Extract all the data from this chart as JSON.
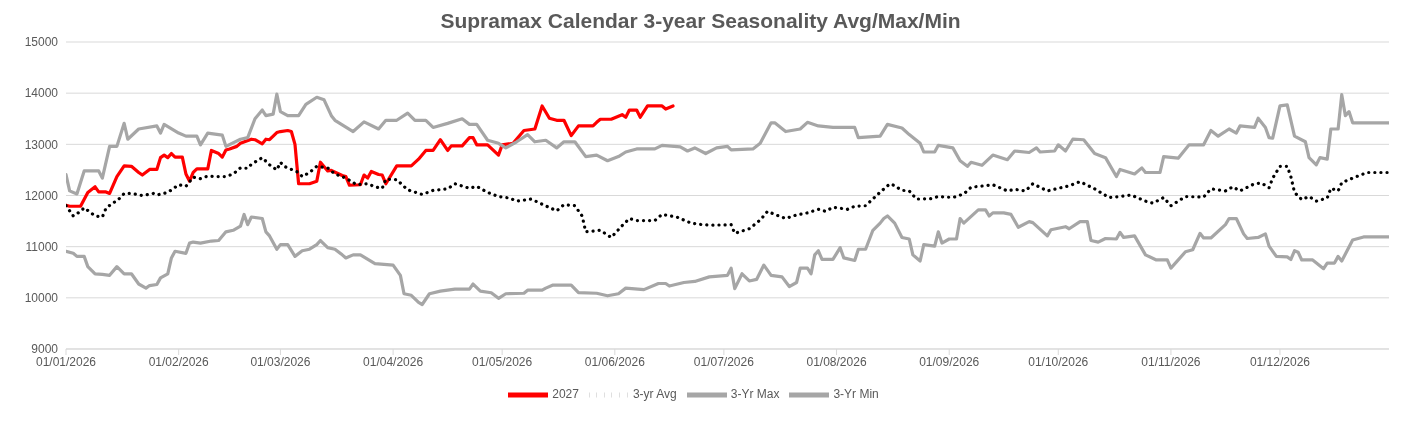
{
  "chart_data": {
    "type": "line",
    "title": "Supramax Calendar 3-year Seasonality Avg/Max/Min",
    "xlim": [
      "2026-01-01",
      "2026-12-31"
    ],
    "xticks": [
      {
        "value": "2026-01-01",
        "label": "01/01/2026"
      },
      {
        "value": "2026-02-01",
        "label": "01/02/2026"
      },
      {
        "value": "2026-03-01",
        "label": "01/03/2026"
      },
      {
        "value": "2026-04-01",
        "label": "01/04/2026"
      },
      {
        "value": "2026-05-01",
        "label": "01/05/2026"
      },
      {
        "value": "2026-06-01",
        "label": "01/06/2026"
      },
      {
        "value": "2026-07-01",
        "label": "01/07/2026"
      },
      {
        "value": "2026-08-01",
        "label": "01/08/2026"
      },
      {
        "value": "2026-09-01",
        "label": "01/09/2026"
      },
      {
        "value": "2026-10-01",
        "label": "01/10/2026"
      },
      {
        "value": "2026-11-01",
        "label": "01/11/2026"
      },
      {
        "value": "2026-12-01",
        "label": "01/12/2026"
      }
    ],
    "ylim": [
      9000,
      15000
    ],
    "yticks": [
      9000,
      10000,
      11000,
      12000,
      13000,
      14000,
      15000
    ],
    "grid": "y",
    "legend": "bottom",
    "marker": "none",
    "series": [
      {
        "name": "2027",
        "color": "#ff0000",
        "line_style": "solid",
        "x": [
          "2026-01-01",
          "2026-01-02",
          "2026-01-05",
          "2026-01-07",
          "2026-01-09",
          "2026-01-10",
          "2026-01-12",
          "2026-01-13",
          "2026-01-15",
          "2026-01-17",
          "2026-01-19",
          "2026-01-21",
          "2026-01-22",
          "2026-01-24",
          "2026-01-26",
          "2026-01-27",
          "2026-01-28",
          "2026-01-29",
          "2026-01-30",
          "2026-01-31",
          "2026-02-02",
          "2026-02-03",
          "2026-02-04",
          "2026-02-05",
          "2026-02-06",
          "2026-02-09",
          "2026-02-10",
          "2026-02-12",
          "2026-02-13",
          "2026-02-14",
          "2026-02-15",
          "2026-02-17",
          "2026-02-18",
          "2026-02-21",
          "2026-02-22",
          "2026-02-24",
          "2026-02-25",
          "2026-02-26",
          "2026-02-28",
          "2026-03-01",
          "2026-03-03",
          "2026-03-04",
          "2026-03-05",
          "2026-03-06",
          "2026-03-09",
          "2026-03-11",
          "2026-03-12",
          "2026-03-14",
          "2026-03-15",
          "2026-03-18",
          "2026-03-19",
          "2026-03-20",
          "2026-03-23",
          "2026-03-24",
          "2026-03-25",
          "2026-03-26",
          "2026-03-28",
          "2026-03-29",
          "2026-03-30",
          "2026-04-02",
          "2026-04-06",
          "2026-04-08",
          "2026-04-10",
          "2026-04-12",
          "2026-04-14",
          "2026-04-16",
          "2026-04-17",
          "2026-04-20",
          "2026-04-22",
          "2026-04-23",
          "2026-04-24",
          "2026-04-27",
          "2026-04-30",
          "2026-05-01",
          "2026-05-04",
          "2026-05-07",
          "2026-05-10",
          "2026-05-12",
          "2026-05-14",
          "2026-05-16",
          "2026-05-18",
          "2026-05-20",
          "2026-05-22",
          "2026-05-26",
          "2026-05-27",
          "2026-05-28",
          "2026-05-31",
          "2026-06-03",
          "2026-06-04",
          "2026-06-05",
          "2026-06-07",
          "2026-06-08",
          "2026-06-10",
          "2026-06-14",
          "2026-06-15",
          "2026-06-17"
        ],
        "values": [
          11810,
          11790,
          11790,
          12060,
          12170,
          12070,
          12070,
          12040,
          12370,
          12580,
          12570,
          12450,
          12400,
          12510,
          12510,
          12740,
          12790,
          12740,
          12820,
          12750,
          12750,
          12420,
          12280,
          12450,
          12520,
          12520,
          12880,
          12820,
          12750,
          12890,
          12910,
          12960,
          13020,
          13100,
          13090,
          13010,
          13100,
          13090,
          13230,
          13250,
          13270,
          13250,
          13000,
          12230,
          12230,
          12280,
          12650,
          12480,
          12490,
          12390,
          12370,
          12200,
          12210,
          12400,
          12340,
          12470,
          12410,
          12400,
          12230,
          12580,
          12580,
          12710,
          12880,
          12880,
          13090,
          12880,
          12970,
          12970,
          13130,
          13130,
          12990,
          12990,
          12790,
          12990,
          13020,
          13270,
          13300,
          13750,
          13510,
          13470,
          13470,
          13170,
          13360,
          13360,
          13430,
          13490,
          13490,
          13580,
          13530,
          13670,
          13670,
          13530,
          13750,
          13750,
          13690,
          13750
        ]
      },
      {
        "name": "3-yr Avg",
        "color": "#000000",
        "line_style": "dotted",
        "x": [
          "2026-01-01",
          "2026-01-03",
          "2026-01-05",
          "2026-01-06",
          "2026-01-09",
          "2026-01-11",
          "2026-01-12",
          "2026-01-14",
          "2026-01-15",
          "2026-01-17",
          "2026-01-19",
          "2026-01-22",
          "2026-01-25",
          "2026-01-26",
          "2026-01-29",
          "2026-02-01",
          "2026-02-03",
          "2026-02-05",
          "2026-02-07",
          "2026-02-09",
          "2026-02-11",
          "2026-02-14",
          "2026-02-16",
          "2026-02-18",
          "2026-02-20",
          "2026-02-21",
          "2026-02-24",
          "2026-02-26",
          "2026-02-28",
          "2026-03-01",
          "2026-03-02",
          "2026-03-04",
          "2026-03-06",
          "2026-03-07",
          "2026-03-09",
          "2026-03-11",
          "2026-03-14",
          "2026-03-16",
          "2026-03-19",
          "2026-03-22",
          "2026-03-25",
          "2026-03-27",
          "2026-03-29",
          "2026-03-30",
          "2026-04-02",
          "2026-04-05",
          "2026-04-09",
          "2026-04-12",
          "2026-04-16",
          "2026-04-18",
          "2026-04-22",
          "2026-04-24",
          "2026-04-27",
          "2026-04-30",
          "2026-05-03",
          "2026-05-05",
          "2026-05-09",
          "2026-05-12",
          "2026-05-16",
          "2026-05-18",
          "2026-05-21",
          "2026-05-23",
          "2026-05-24",
          "2026-05-28",
          "2026-05-31",
          "2026-06-03",
          "2026-06-05",
          "2026-06-07",
          "2026-06-12",
          "2026-06-14",
          "2026-06-18",
          "2026-06-22",
          "2026-06-25",
          "2026-06-28",
          "2026-07-03",
          "2026-07-04",
          "2026-07-08",
          "2026-07-11",
          "2026-07-13",
          "2026-07-15",
          "2026-07-18",
          "2026-07-21",
          "2026-07-24",
          "2026-07-27",
          "2026-07-29",
          "2026-07-31",
          "2026-08-04",
          "2026-08-06",
          "2026-08-09",
          "2026-08-12",
          "2026-08-15",
          "2026-08-16",
          "2026-08-19",
          "2026-08-21",
          "2026-08-23",
          "2026-08-27",
          "2026-08-29",
          "2026-09-02",
          "2026-09-05",
          "2026-09-07",
          "2026-09-13",
          "2026-09-17",
          "2026-09-19",
          "2026-09-22",
          "2026-09-24",
          "2026-09-28",
          "2026-10-04",
          "2026-10-07",
          "2026-10-11",
          "2026-10-15",
          "2026-10-18",
          "2026-10-21",
          "2026-10-25",
          "2026-10-27",
          "2026-10-30",
          "2026-11-01",
          "2026-11-05",
          "2026-11-10",
          "2026-11-12",
          "2026-11-16",
          "2026-11-18",
          "2026-11-20",
          "2026-11-24",
          "2026-11-26",
          "2026-11-28",
          "2026-11-29",
          "2026-12-01",
          "2026-12-03",
          "2026-12-04",
          "2026-12-05",
          "2026-12-07",
          "2026-12-09",
          "2026-12-11",
          "2026-12-14",
          "2026-12-15",
          "2026-12-17",
          "2026-12-18",
          "2026-12-21",
          "2026-12-25",
          "2026-12-31"
        ],
        "values": [
          11800,
          11600,
          11690,
          11760,
          11600,
          11580,
          11750,
          11860,
          11890,
          12040,
          12040,
          12000,
          12040,
          12010,
          12060,
          12210,
          12180,
          12360,
          12330,
          12380,
          12370,
          12370,
          12420,
          12540,
          12530,
          12610,
          12740,
          12600,
          12500,
          12650,
          12570,
          12510,
          12450,
          12370,
          12450,
          12570,
          12540,
          12420,
          12340,
          12210,
          12230,
          12170,
          12140,
          12320,
          12310,
          12110,
          12020,
          12100,
          12130,
          12230,
          12140,
          12180,
          12060,
          11980,
          11950,
          11890,
          11930,
          11830,
          11700,
          11820,
          11800,
          11600,
          11290,
          11320,
          11180,
          11410,
          11550,
          11510,
          11510,
          11630,
          11580,
          11460,
          11430,
          11420,
          11430,
          11260,
          11350,
          11520,
          11690,
          11630,
          11550,
          11620,
          11660,
          11730,
          11690,
          11770,
          11730,
          11790,
          11800,
          12000,
          12190,
          12230,
          12100,
          12090,
          11930,
          11940,
          11980,
          11960,
          12030,
          12160,
          12210,
          12090,
          12120,
          12090,
          12230,
          12090,
          12190,
          12270,
          12130,
          11960,
          11980,
          12010,
          11890,
          11850,
          11960,
          11800,
          11980,
          11970,
          12130,
          12090,
          12170,
          12090,
          12230,
          12240,
          12150,
          12340,
          12570,
          12570,
          12370,
          12060,
          11920,
          11980,
          11890,
          11950,
          12140,
          12090,
          12250,
          12340,
          12450,
          12450
        ]
      },
      {
        "name": "3-Yr Max",
        "color": "#a6a6a6",
        "line_style": "solid",
        "x": [
          "2026-01-01",
          "2026-01-02",
          "2026-01-04",
          "2026-01-06",
          "2026-01-10",
          "2026-01-11",
          "2026-01-13",
          "2026-01-15",
          "2026-01-17",
          "2026-01-18",
          "2026-01-21",
          "2026-01-26",
          "2026-01-27",
          "2026-01-28",
          "2026-02-01",
          "2026-02-03",
          "2026-02-06",
          "2026-02-07",
          "2026-02-09",
          "2026-02-13",
          "2026-02-14",
          "2026-02-18",
          "2026-02-20",
          "2026-02-22",
          "2026-02-24",
          "2026-02-25",
          "2026-02-27",
          "2026-02-28",
          "2026-03-01",
          "2026-03-03",
          "2026-03-06",
          "2026-03-08",
          "2026-03-11",
          "2026-03-13",
          "2026-03-15",
          "2026-03-16",
          "2026-03-21",
          "2026-03-24",
          "2026-03-28",
          "2026-03-30",
          "2026-04-02",
          "2026-04-05",
          "2026-04-07",
          "2026-04-10",
          "2026-04-12",
          "2026-04-16",
          "2026-04-20",
          "2026-04-22",
          "2026-04-24",
          "2026-04-27",
          "2026-04-30",
          "2026-05-02",
          "2026-05-05",
          "2026-05-08",
          "2026-05-10",
          "2026-05-13",
          "2026-05-16",
          "2026-05-18",
          "2026-05-21",
          "2026-05-24",
          "2026-05-27",
          "2026-05-30",
          "2026-06-02",
          "2026-06-04",
          "2026-06-07",
          "2026-06-12",
          "2026-06-14",
          "2026-06-19",
          "2026-06-21",
          "2026-06-23",
          "2026-06-26",
          "2026-06-29",
          "2026-07-02",
          "2026-07-03",
          "2026-07-09",
          "2026-07-11",
          "2026-07-14",
          "2026-07-15",
          "2026-07-18",
          "2026-07-22",
          "2026-07-24",
          "2026-07-27",
          "2026-07-31",
          "2026-08-06",
          "2026-08-07",
          "2026-08-13",
          "2026-08-15",
          "2026-08-19",
          "2026-08-21",
          "2026-08-24",
          "2026-08-25",
          "2026-08-28",
          "2026-08-29",
          "2026-09-02",
          "2026-09-04",
          "2026-09-06",
          "2026-09-07",
          "2026-09-10",
          "2026-09-13",
          "2026-09-17",
          "2026-09-19",
          "2026-09-23",
          "2026-09-25",
          "2026-09-26",
          "2026-09-30",
          "2026-10-01",
          "2026-10-03",
          "2026-10-05",
          "2026-10-08",
          "2026-10-11",
          "2026-10-14",
          "2026-10-17",
          "2026-10-18",
          "2026-10-22",
          "2026-10-24",
          "2026-10-25",
          "2026-10-29",
          "2026-10-30",
          "2026-11-03",
          "2026-11-06",
          "2026-11-10",
          "2026-11-12",
          "2026-11-14",
          "2026-11-17",
          "2026-11-19",
          "2026-11-20",
          "2026-11-24",
          "2026-11-25",
          "2026-11-27",
          "2026-11-28",
          "2026-11-29",
          "2026-12-01",
          "2026-12-03",
          "2026-12-05",
          "2026-12-08",
          "2026-12-09",
          "2026-12-11",
          "2026-12-12",
          "2026-12-14",
          "2026-12-15",
          "2026-12-17",
          "2026-12-18",
          "2026-12-19",
          "2026-12-20",
          "2026-12-21",
          "2026-12-31"
        ],
        "values": [
          12410,
          12090,
          12030,
          12480,
          12480,
          12340,
          12960,
          12960,
          13410,
          13100,
          13300,
          13360,
          13220,
          13390,
          13220,
          13160,
          13160,
          12990,
          13220,
          13180,
          12960,
          13100,
          13130,
          13500,
          13670,
          13560,
          13590,
          13980,
          13640,
          13560,
          13560,
          13780,
          13920,
          13870,
          13560,
          13470,
          13250,
          13440,
          13300,
          13470,
          13470,
          13610,
          13470,
          13470,
          13330,
          13410,
          13500,
          13390,
          13390,
          13080,
          13020,
          12930,
          13050,
          13190,
          13050,
          13080,
          12930,
          13050,
          13050,
          12760,
          12790,
          12680,
          12760,
          12850,
          12910,
          12910,
          12980,
          12950,
          12870,
          12930,
          12820,
          12930,
          12960,
          12890,
          12910,
          13020,
          13420,
          13420,
          13250,
          13300,
          13430,
          13360,
          13330,
          13330,
          13130,
          13160,
          13390,
          13320,
          13190,
          13020,
          12850,
          12850,
          12980,
          12930,
          12680,
          12570,
          12650,
          12590,
          12790,
          12700,
          12870,
          12840,
          12930,
          12850,
          12870,
          12990,
          12870,
          13100,
          13090,
          12820,
          12740,
          12370,
          12510,
          12420,
          12540,
          12450,
          12450,
          12760,
          12730,
          12990,
          12990,
          13270,
          13160,
          13300,
          13220,
          13360,
          13330,
          13510,
          13330,
          13130,
          13120,
          13750,
          13770,
          13160,
          13050,
          12740,
          12600,
          12740,
          12710,
          13300,
          13300,
          13970,
          13560,
          13640,
          13420,
          13420
        ]
      },
      {
        "name": "3-Yr Min",
        "color": "#a6a6a6",
        "line_style": "solid",
        "x": [
          "2026-01-01",
          "2026-01-03",
          "2026-01-04",
          "2026-01-06",
          "2026-01-07",
          "2026-01-09",
          "2026-01-11",
          "2026-01-13",
          "2026-01-15",
          "2026-01-17",
          "2026-01-19",
          "2026-01-21",
          "2026-01-23",
          "2026-01-24",
          "2026-01-26",
          "2026-01-27",
          "2026-01-29",
          "2026-01-30",
          "2026-01-31",
          "2026-02-03",
          "2026-02-04",
          "2026-02-05",
          "2026-02-07",
          "2026-02-10",
          "2026-02-12",
          "2026-02-14",
          "2026-02-16",
          "2026-02-18",
          "2026-02-19",
          "2026-02-20",
          "2026-02-21",
          "2026-02-24",
          "2026-02-25",
          "2026-02-26",
          "2026-02-28",
          "2026-03-01",
          "2026-03-03",
          "2026-03-05",
          "2026-03-07",
          "2026-03-09",
          "2026-03-11",
          "2026-03-12",
          "2026-03-14",
          "2026-03-16",
          "2026-03-18",
          "2026-03-19",
          "2026-03-21",
          "2026-03-23",
          "2026-03-27",
          "2026-04-01",
          "2026-04-03",
          "2026-04-04",
          "2026-04-06",
          "2026-04-08",
          "2026-04-09",
          "2026-04-11",
          "2026-04-14",
          "2026-04-18",
          "2026-04-22",
          "2026-04-23",
          "2026-04-25",
          "2026-04-28",
          "2026-04-30",
          "2026-05-02",
          "2026-05-07",
          "2026-05-08",
          "2026-05-12",
          "2026-05-13",
          "2026-05-15",
          "2026-05-20",
          "2026-05-22",
          "2026-05-27",
          "2026-05-30",
          "2026-06-02",
          "2026-06-04",
          "2026-06-09",
          "2026-06-13",
          "2026-06-15",
          "2026-06-16",
          "2026-06-20",
          "2026-06-23",
          "2026-06-27",
          "2026-07-02",
          "2026-07-03",
          "2026-07-04",
          "2026-07-06",
          "2026-07-08",
          "2026-07-10",
          "2026-07-12",
          "2026-07-14",
          "2026-07-17",
          "2026-07-19",
          "2026-07-21",
          "2026-07-22",
          "2026-07-24",
          "2026-07-25",
          "2026-07-26",
          "2026-07-27",
          "2026-07-28",
          "2026-07-31",
          "2026-08-02",
          "2026-08-03",
          "2026-08-06",
          "2026-08-07",
          "2026-08-09",
          "2026-08-11",
          "2026-08-13",
          "2026-08-14",
          "2026-08-15",
          "2026-08-17",
          "2026-08-19",
          "2026-08-21",
          "2026-08-22",
          "2026-08-24",
          "2026-08-25",
          "2026-08-28",
          "2026-08-29",
          "2026-08-30",
          "2026-09-01",
          "2026-09-03",
          "2026-09-04",
          "2026-09-05",
          "2026-09-09",
          "2026-09-11",
          "2026-09-12",
          "2026-09-13",
          "2026-09-16",
          "2026-09-18",
          "2026-09-20",
          "2026-09-23",
          "2026-09-24",
          "2026-09-28",
          "2026-09-29",
          "2026-10-03",
          "2026-10-04",
          "2026-10-07",
          "2026-10-09",
          "2026-10-10",
          "2026-10-12",
          "2026-10-14",
          "2026-10-17",
          "2026-10-18",
          "2026-10-19",
          "2026-10-22",
          "2026-10-25",
          "2026-10-28",
          "2026-10-31",
          "2026-11-01",
          "2026-11-05",
          "2026-11-07",
          "2026-11-09",
          "2026-11-10",
          "2026-11-12",
          "2026-11-16",
          "2026-11-17",
          "2026-11-19",
          "2026-11-21",
          "2026-11-22",
          "2026-11-25",
          "2026-11-27",
          "2026-11-28",
          "2026-11-30",
          "2026-12-03",
          "2026-12-04",
          "2026-12-05",
          "2026-12-06",
          "2026-12-07",
          "2026-12-10",
          "2026-12-13",
          "2026-12-14",
          "2026-12-16",
          "2026-12-17",
          "2026-12-18",
          "2026-12-21",
          "2026-12-24",
          "2026-12-31"
        ],
        "values": [
          10910,
          10870,
          10810,
          10810,
          10610,
          10470,
          10460,
          10440,
          10610,
          10470,
          10470,
          10270,
          10190,
          10240,
          10260,
          10390,
          10470,
          10780,
          10910,
          10870,
          11070,
          11090,
          11070,
          11110,
          11120,
          11290,
          11320,
          11400,
          11630,
          11430,
          11580,
          11550,
          11290,
          11210,
          10950,
          11040,
          11040,
          10810,
          10920,
          10950,
          11040,
          11120,
          10980,
          10950,
          10840,
          10780,
          10840,
          10840,
          10670,
          10640,
          10440,
          10080,
          10050,
          9910,
          9870,
          10080,
          10130,
          10170,
          10170,
          10270,
          10130,
          10100,
          9990,
          10080,
          10090,
          10150,
          10150,
          10190,
          10250,
          10250,
          10100,
          10090,
          10040,
          10080,
          10190,
          10160,
          10280,
          10280,
          10230,
          10300,
          10320,
          10410,
          10440,
          10580,
          10180,
          10470,
          10330,
          10360,
          10640,
          10440,
          10410,
          10220,
          10300,
          10580,
          10580,
          10470,
          10840,
          10920,
          10750,
          10750,
          10980,
          10780,
          10730,
          10950,
          10950,
          11320,
          11460,
          11550,
          11600,
          11460,
          11180,
          11150,
          10840,
          10720,
          11040,
          11010,
          11290,
          11070,
          11150,
          11150,
          11550,
          11460,
          11720,
          11720,
          11600,
          11660,
          11660,
          11630,
          11380,
          11490,
          11470,
          11210,
          11330,
          11390,
          11350,
          11490,
          11490,
          11120,
          11090,
          11160,
          11150,
          11280,
          11180,
          11210,
          10840,
          10740,
          10740,
          10580,
          10900,
          10940,
          11260,
          11170,
          11170,
          11430,
          11550,
          11550,
          11250,
          11160,
          11180,
          11250,
          11010,
          10810,
          10800,
          10750,
          10920,
          10890,
          10740,
          10740,
          10570,
          10680,
          10680,
          10810,
          10720,
          11130,
          11190,
          11190
        ]
      }
    ]
  }
}
